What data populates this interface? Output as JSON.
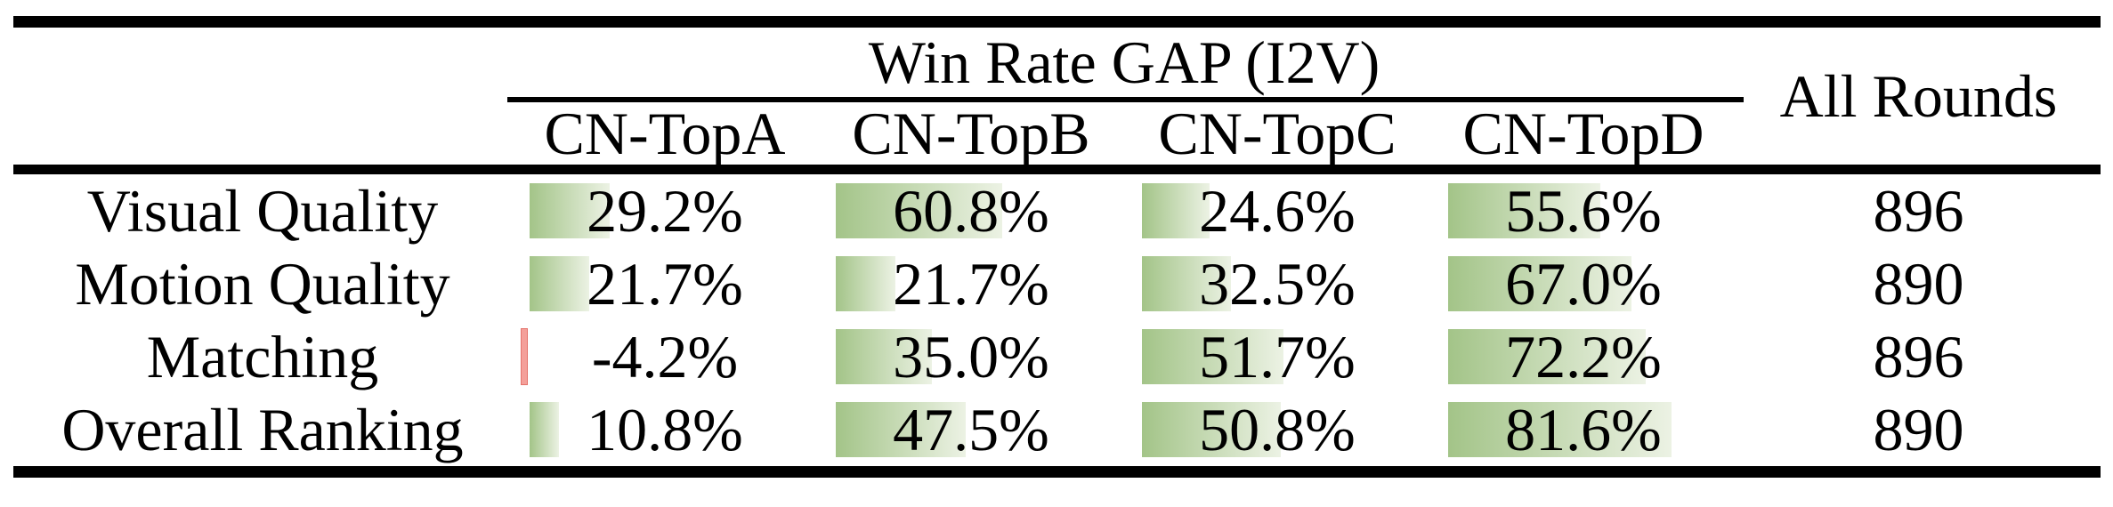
{
  "table": {
    "group_header": "Win Rate GAP (I2V)",
    "all_rounds_header": "All Rounds",
    "columns": [
      "CN-TopA",
      "CN-TopB",
      "CN-TopC",
      "CN-TopD"
    ],
    "rows": [
      {
        "label": "Visual Quality",
        "cells": [
          {
            "text": "29.2%",
            "value": 29.2
          },
          {
            "text": "60.8%",
            "value": 60.8
          },
          {
            "text": "24.6%",
            "value": 24.6
          },
          {
            "text": "55.6%",
            "value": 55.6
          }
        ],
        "all_rounds": "896"
      },
      {
        "label": "Motion Quality",
        "cells": [
          {
            "text": "21.7%",
            "value": 21.7
          },
          {
            "text": "21.7%",
            "value": 21.7
          },
          {
            "text": "32.5%",
            "value": 32.5
          },
          {
            "text": "67.0%",
            "value": 67.0
          }
        ],
        "all_rounds": "890"
      },
      {
        "label": "Matching",
        "cells": [
          {
            "text": "-4.2%",
            "value": -4.2
          },
          {
            "text": "35.0%",
            "value": 35.0
          },
          {
            "text": "51.7%",
            "value": 51.7
          },
          {
            "text": "72.2%",
            "value": 72.2
          }
        ],
        "all_rounds": "896"
      },
      {
        "label": "Overall Ranking",
        "cells": [
          {
            "text": "10.8%",
            "value": 10.8
          },
          {
            "text": "47.5%",
            "value": 47.5
          },
          {
            "text": "50.8%",
            "value": 50.8
          },
          {
            "text": "81.6%",
            "value": 81.6
          }
        ],
        "all_rounds": "890"
      }
    ],
    "colors": {
      "bar_positive_start": "#a3c488",
      "bar_positive_end": "#ecf2e4",
      "bar_negative": "#f4a09a",
      "rule": "#000000"
    }
  }
}
